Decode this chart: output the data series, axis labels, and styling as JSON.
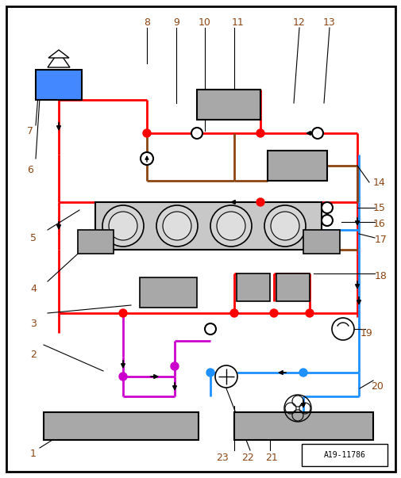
{
  "bg_color": "#ffffff",
  "fig_width": 5.06,
  "fig_height": 6.03,
  "dpi": 100,
  "red": "#FF0000",
  "blue": "#1E90FF",
  "brown": "#8B4513",
  "magenta": "#CC00CC",
  "gray": "#A8A8A8",
  "black": "#000000",
  "label_color": "#8B4513",
  "watermark": "A19-11786"
}
